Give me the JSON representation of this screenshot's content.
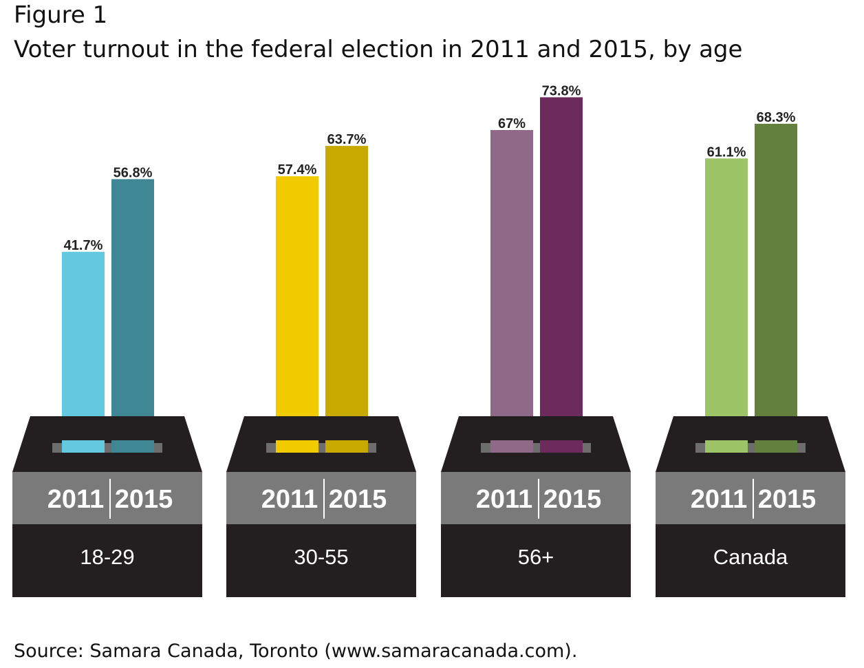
{
  "figure_label": "Figure 1",
  "title": "Voter turnout in the federal election in 2011 and 2015, by age",
  "source": "Source: Samara Canada, Toronto (www.samaracanada.com).",
  "chart_data": {
    "type": "bar",
    "title": "Voter turnout in the federal election in 2011 and 2015, by age",
    "categories": [
      "18-29",
      "30-55",
      "56+",
      "Canada"
    ],
    "series": [
      {
        "name": "2011",
        "values": [
          41.7,
          57.4,
          67,
          61.1
        ],
        "labels": [
          "41.7%",
          "57.4%",
          "67%",
          "61.1%"
        ]
      },
      {
        "name": "2015",
        "values": [
          56.8,
          63.7,
          73.8,
          68.3
        ],
        "labels": [
          "56.8%",
          "63.7%",
          "73.8%",
          "68.3%"
        ]
      }
    ],
    "colors": [
      [
        "#62c9de",
        "#3f8795"
      ],
      [
        "#f1cb00",
        "#c8a900"
      ],
      [
        "#8e6a88",
        "#6c2b5c"
      ],
      [
        "#9dc466",
        "#63803f"
      ]
    ],
    "unit": "%",
    "xlabel": "",
    "ylabel": "",
    "grid": false,
    "legend": "none"
  }
}
